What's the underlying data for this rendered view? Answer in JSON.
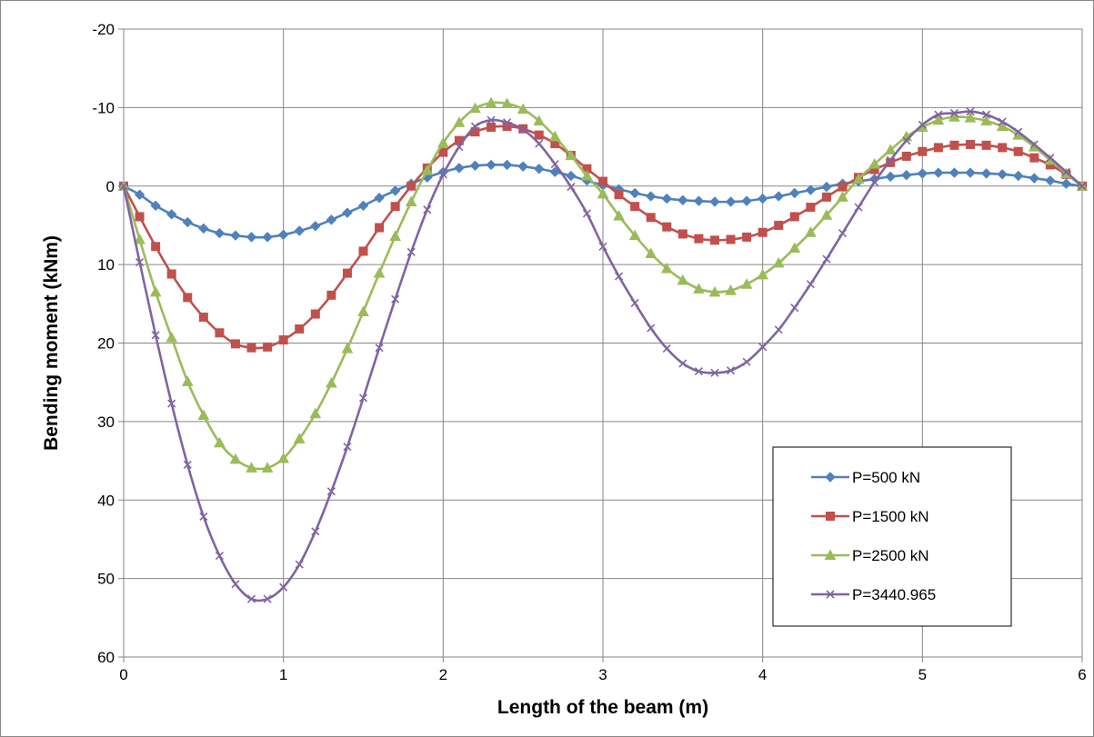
{
  "chart_data": {
    "type": "line",
    "title": "",
    "xlabel": "Length of the beam (m)",
    "ylabel": "Bending moment (kNm)",
    "xlim": [
      0,
      6
    ],
    "ylim": [
      60,
      -20
    ],
    "y_axis_reversed": true,
    "grid": true,
    "x_ticks": [
      "0",
      "1",
      "2",
      "3",
      "4",
      "5",
      "6"
    ],
    "y_ticks": [
      "-20",
      "-10",
      "0",
      "10",
      "20",
      "30",
      "40",
      "50",
      "60"
    ],
    "legend_position": "lower-right",
    "series": [
      {
        "name": "P=500 kN",
        "color": "#4f81bd",
        "marker": "diamond",
        "x": [
          0,
          0.1,
          0.2,
          0.3,
          0.4,
          0.5,
          0.6,
          0.7,
          0.8,
          0.9,
          1,
          1.1,
          1.2,
          1.3,
          1.4,
          1.5,
          1.6,
          1.7,
          1.8,
          1.9,
          2,
          2.1,
          2.2,
          2.3,
          2.4,
          2.5,
          2.6,
          2.7,
          2.8,
          2.9,
          3,
          3.1,
          3.2,
          3.3,
          3.4,
          3.5,
          3.6,
          3.7,
          3.8,
          3.9,
          4,
          4.1,
          4.2,
          4.3,
          4.4,
          4.5,
          4.6,
          4.7,
          4.8,
          4.9,
          5,
          5.1,
          5.2,
          5.3,
          5.4,
          5.5,
          5.6,
          5.7,
          5.8,
          5.9,
          6
        ],
        "y": [
          0,
          1.1,
          2.5,
          3.6,
          4.6,
          5.4,
          6.0,
          6.3,
          6.5,
          6.5,
          6.2,
          5.7,
          5.1,
          4.3,
          3.4,
          2.5,
          1.5,
          0.6,
          -0.3,
          -1.1,
          -1.8,
          -2.3,
          -2.6,
          -2.7,
          -2.7,
          -2.5,
          -2.2,
          -1.8,
          -1.3,
          -0.7,
          -0.1,
          0.4,
          0.9,
          1.3,
          1.6,
          1.8,
          1.9,
          2.0,
          2.0,
          1.9,
          1.6,
          1.3,
          0.9,
          0.5,
          0.1,
          -0.3,
          -0.6,
          -0.9,
          -1.2,
          -1.4,
          -1.6,
          -1.7,
          -1.7,
          -1.7,
          -1.6,
          -1.5,
          -1.3,
          -1.0,
          -0.7,
          -0.3,
          0
        ]
      },
      {
        "name": "P=1500 kN",
        "color": "#c0504d",
        "marker": "square",
        "x": [
          0,
          0.1,
          0.2,
          0.3,
          0.4,
          0.5,
          0.6,
          0.7,
          0.8,
          0.9,
          1,
          1.1,
          1.2,
          1.3,
          1.4,
          1.5,
          1.6,
          1.7,
          1.8,
          1.9,
          2,
          2.1,
          2.2,
          2.3,
          2.4,
          2.5,
          2.6,
          2.7,
          2.8,
          2.9,
          3,
          3.1,
          3.2,
          3.3,
          3.4,
          3.5,
          3.6,
          3.7,
          3.8,
          3.9,
          4,
          4.1,
          4.2,
          4.3,
          4.4,
          4.5,
          4.6,
          4.7,
          4.8,
          4.9,
          5,
          5.1,
          5.2,
          5.3,
          5.4,
          5.5,
          5.6,
          5.7,
          5.8,
          5.9,
          6
        ],
        "y": [
          0,
          3.9,
          7.7,
          11.2,
          14.2,
          16.7,
          18.7,
          20.1,
          20.6,
          20.5,
          19.6,
          18.2,
          16.3,
          13.9,
          11.1,
          8.3,
          5.3,
          2.6,
          0,
          -2.3,
          -4.3,
          -5.8,
          -6.9,
          -7.5,
          -7.6,
          -7.3,
          -6.5,
          -5.4,
          -3.9,
          -2.2,
          -0.6,
          1.1,
          2.6,
          4.0,
          5.2,
          6.1,
          6.7,
          6.9,
          6.8,
          6.5,
          5.9,
          5.0,
          3.9,
          2.7,
          1.4,
          0.1,
          -1.1,
          -2.1,
          -3.0,
          -3.8,
          -4.4,
          -4.9,
          -5.2,
          -5.3,
          -5.2,
          -4.9,
          -4.4,
          -3.6,
          -2.7,
          -1.5,
          0
        ]
      },
      {
        "name": "P=2500 kN",
        "color": "#9bbb59",
        "marker": "triangle",
        "x": [
          0,
          0.1,
          0.2,
          0.3,
          0.4,
          0.5,
          0.6,
          0.7,
          0.8,
          0.9,
          1,
          1.1,
          1.2,
          1.3,
          1.4,
          1.5,
          1.6,
          1.7,
          1.8,
          1.9,
          2,
          2.1,
          2.2,
          2.3,
          2.4,
          2.5,
          2.6,
          2.7,
          2.8,
          2.9,
          3,
          3.1,
          3.2,
          3.3,
          3.4,
          3.5,
          3.6,
          3.7,
          3.8,
          3.9,
          4,
          4.1,
          4.2,
          4.3,
          4.4,
          4.5,
          4.6,
          4.7,
          4.8,
          4.9,
          5,
          5.1,
          5.2,
          5.3,
          5.4,
          5.5,
          5.6,
          5.7,
          5.8,
          5.9,
          6
        ],
        "y": [
          0,
          6.8,
          13.5,
          19.3,
          24.9,
          29.2,
          32.7,
          34.8,
          35.9,
          35.9,
          34.7,
          32.2,
          29.0,
          25.1,
          20.7,
          16.0,
          11.1,
          6.4,
          2.0,
          -2.0,
          -5.5,
          -8.1,
          -9.9,
          -10.6,
          -10.5,
          -9.8,
          -8.3,
          -6.3,
          -3.9,
          -1.3,
          1.0,
          3.8,
          6.3,
          8.6,
          10.5,
          12.0,
          13.1,
          13.5,
          13.3,
          12.5,
          11.3,
          9.8,
          7.9,
          5.9,
          3.7,
          1.4,
          -0.9,
          -2.8,
          -4.6,
          -6.3,
          -7.5,
          -8.4,
          -8.8,
          -8.7,
          -8.3,
          -7.6,
          -6.5,
          -5.0,
          -3.3,
          -1.6,
          0
        ]
      },
      {
        "name": "P=3440.965",
        "color": "#8064a2",
        "marker": "x",
        "x": [
          0,
          0.1,
          0.2,
          0.3,
          0.4,
          0.5,
          0.6,
          0.7,
          0.8,
          0.9,
          1,
          1.1,
          1.2,
          1.3,
          1.4,
          1.5,
          1.6,
          1.7,
          1.8,
          1.9,
          2,
          2.1,
          2.2,
          2.3,
          2.4,
          2.5,
          2.6,
          2.7,
          2.8,
          2.9,
          3,
          3.1,
          3.2,
          3.3,
          3.4,
          3.5,
          3.6,
          3.7,
          3.8,
          3.9,
          4,
          4.1,
          4.2,
          4.3,
          4.4,
          4.5,
          4.6,
          4.7,
          4.8,
          4.9,
          5,
          5.1,
          5.2,
          5.3,
          5.4,
          5.5,
          5.6,
          5.7,
          5.8,
          5.9,
          6
        ],
        "y": [
          0,
          9.7,
          19.0,
          27.7,
          35.5,
          42.1,
          47.1,
          50.7,
          52.6,
          52.6,
          51.1,
          48.2,
          44.0,
          38.9,
          33.2,
          27.0,
          20.6,
          14.4,
          8.4,
          3.0,
          -1.5,
          -5.0,
          -7.6,
          -8.4,
          -8.1,
          -7.2,
          -5.4,
          -2.8,
          0.1,
          3.5,
          7.7,
          11.5,
          14.9,
          18.1,
          20.7,
          22.6,
          23.6,
          23.8,
          23.5,
          22.4,
          20.5,
          18.3,
          15.5,
          12.5,
          9.3,
          6.0,
          2.7,
          -0.5,
          -3.3,
          -5.8,
          -7.8,
          -9.1,
          -9.3,
          -9.5,
          -9.1,
          -8.2,
          -6.9,
          -5.3,
          -3.6,
          -1.8,
          0
        ]
      }
    ]
  }
}
